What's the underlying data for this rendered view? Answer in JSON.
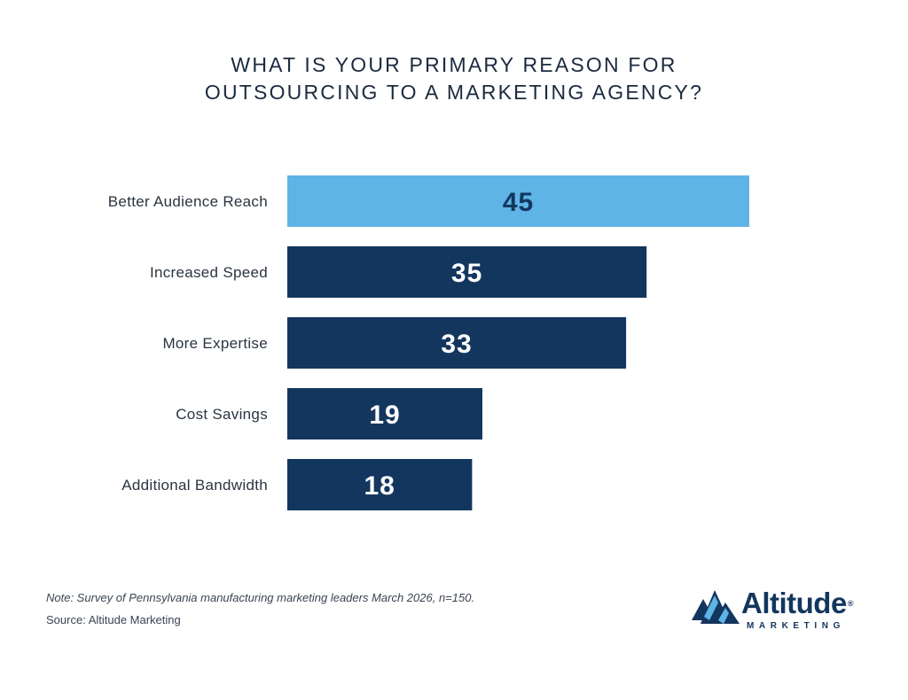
{
  "chart_data": {
    "type": "bar",
    "orientation": "horizontal",
    "title_lines": [
      "WHAT IS YOUR PRIMARY REASON FOR",
      "OUTSOURCING TO A MARKETING AGENCY?"
    ],
    "categories": [
      "Better Audience Reach",
      "Increased Speed",
      "More Expertise",
      "Cost Savings",
      "Additional Bandwidth"
    ],
    "values": [
      45,
      35,
      33,
      19,
      18
    ],
    "highlight_index": 0,
    "colors": {
      "highlight_bar": "#5fb4e6",
      "highlight_text": "#13365e",
      "bar": "#13365e",
      "bar_text": "#ffffff"
    },
    "xlim": [
      0,
      45
    ],
    "grid": false,
    "legend": false
  },
  "footer": {
    "note": "Note: Survey of Pennsylvania manufacturing marketing leaders March 2026, n=150.",
    "source": "Source: Altitude Marketing"
  },
  "logo": {
    "name": "Altitude",
    "registered": "®",
    "tagline": "MARKETING",
    "icon": "mountain-peaks-icon",
    "color": "#13365e",
    "accent": "#5fb4e6"
  }
}
